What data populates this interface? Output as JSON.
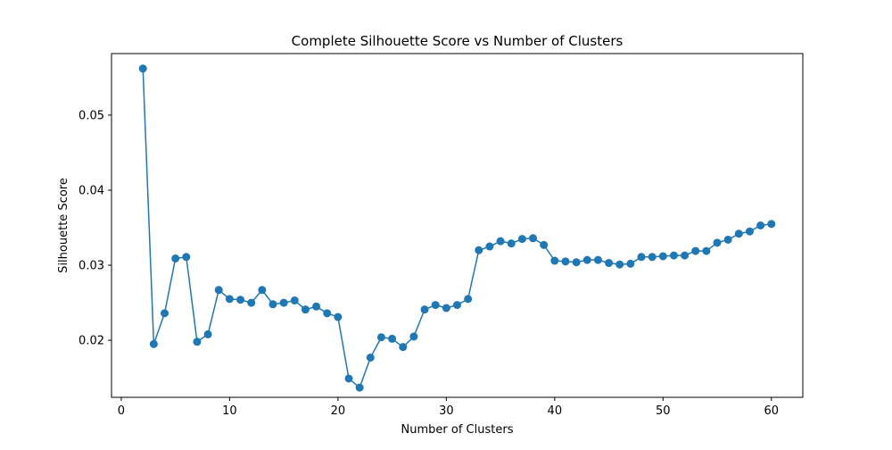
{
  "chart_data": {
    "type": "line",
    "title": "Complete Silhouette Score vs Number of Clusters",
    "xlabel": "Number of Clusters",
    "ylabel": "Silhouette Score",
    "xlim": [
      -0.9,
      62.9
    ],
    "ylim": [
      0.0124,
      0.0582
    ],
    "xticks": [
      0,
      10,
      20,
      30,
      40,
      50,
      60
    ],
    "yticks": [
      0.02,
      0.03,
      0.04,
      0.05
    ],
    "grid": false,
    "legend": "none",
    "markers": true,
    "series": [
      {
        "color": "#1f77b4",
        "x": [
          2,
          3,
          4,
          5,
          6,
          7,
          8,
          9,
          10,
          11,
          12,
          13,
          14,
          15,
          16,
          17,
          18,
          19,
          20,
          21,
          22,
          23,
          24,
          25,
          26,
          27,
          28,
          29,
          30,
          31,
          32,
          33,
          34,
          35,
          36,
          37,
          38,
          39,
          40,
          41,
          42,
          43,
          44,
          45,
          46,
          47,
          48,
          49,
          50,
          51,
          52,
          53,
          54,
          55,
          56,
          57,
          58,
          59,
          60
        ],
        "y": [
          0.0562,
          0.0195,
          0.0236,
          0.0309,
          0.0311,
          0.0198,
          0.0208,
          0.0267,
          0.0255,
          0.0254,
          0.025,
          0.0267,
          0.0248,
          0.025,
          0.0253,
          0.0241,
          0.0245,
          0.0236,
          0.0231,
          0.0149,
          0.0137,
          0.0177,
          0.0204,
          0.0202,
          0.0191,
          0.0205,
          0.0241,
          0.0247,
          0.0243,
          0.0247,
          0.0255,
          0.032,
          0.0325,
          0.0332,
          0.0329,
          0.0335,
          0.0336,
          0.0327,
          0.0306,
          0.0305,
          0.0304,
          0.0307,
          0.0307,
          0.0303,
          0.0301,
          0.0302,
          0.0311,
          0.0311,
          0.0312,
          0.0313,
          0.0313,
          0.0319,
          0.0319,
          0.033,
          0.0334,
          0.0342,
          0.0345,
          0.0353,
          0.0355
        ]
      }
    ]
  }
}
